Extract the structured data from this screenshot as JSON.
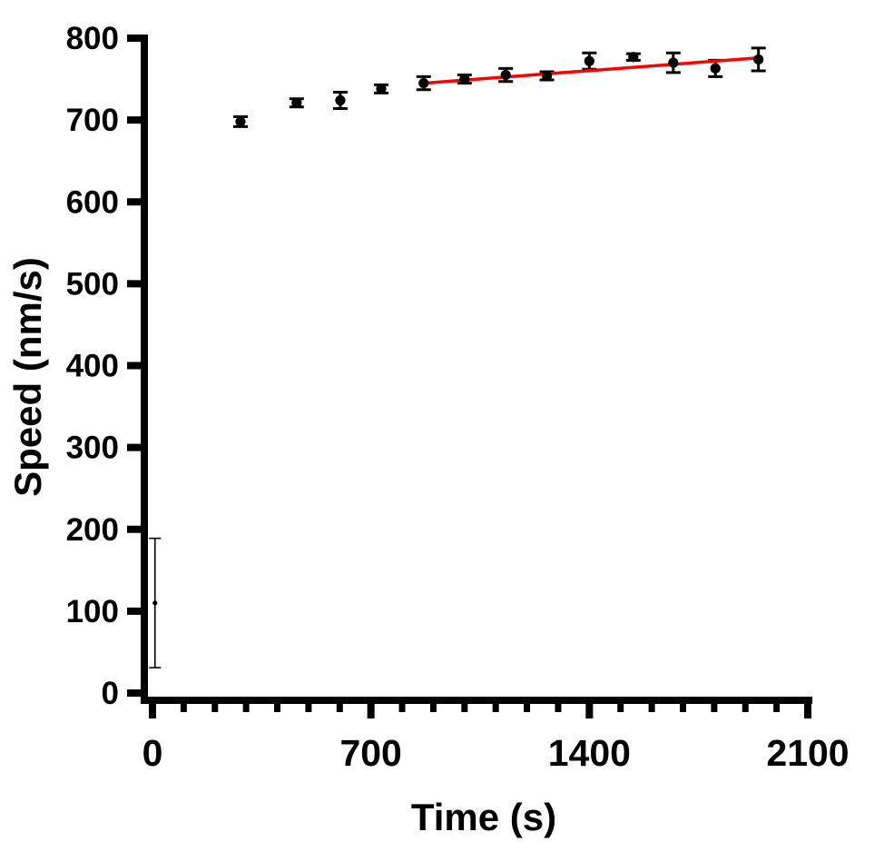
{
  "chart_data": {
    "type": "scatter",
    "title": "",
    "xlabel": "Time (s)",
    "ylabel": "Speed (nm/s)",
    "xlim": [
      0,
      2100
    ],
    "ylim": [
      0,
      800
    ],
    "x_major_ticks": [
      0,
      700,
      1400,
      2100
    ],
    "x_minor_step": 100,
    "y_major_ticks": [
      0,
      100,
      200,
      300,
      400,
      500,
      600,
      700,
      800
    ],
    "grid": false,
    "legend": false,
    "axis_color": "#000000",
    "background_color": "#ffffff",
    "series": [
      {
        "name": "speed-vs-time-measurements",
        "marker": "circle",
        "color": "#000000",
        "points": [
          {
            "x": 8,
            "y": 110,
            "err": 79,
            "thin": true
          },
          {
            "x": 282,
            "y": 698,
            "err": 6
          },
          {
            "x": 462,
            "y": 721,
            "err": 5
          },
          {
            "x": 602,
            "y": 724,
            "err": 10
          },
          {
            "x": 733,
            "y": 738,
            "err": 5
          },
          {
            "x": 869,
            "y": 745,
            "err": 8
          },
          {
            "x": 1000,
            "y": 750,
            "err": 5
          },
          {
            "x": 1132,
            "y": 755,
            "err": 8
          },
          {
            "x": 1264,
            "y": 754,
            "err": 5
          },
          {
            "x": 1400,
            "y": 772,
            "err": 10
          },
          {
            "x": 1541,
            "y": 777,
            "err": 4
          },
          {
            "x": 1669,
            "y": 770,
            "err": 12
          },
          {
            "x": 1804,
            "y": 763,
            "err": 10
          },
          {
            "x": 1942,
            "y": 774,
            "err": 14
          }
        ]
      }
    ],
    "fit_line": {
      "name": "linear-fit",
      "color": "#ff0000",
      "x_start": 870,
      "y_start": 745,
      "x_end": 1945,
      "y_end": 776
    }
  }
}
